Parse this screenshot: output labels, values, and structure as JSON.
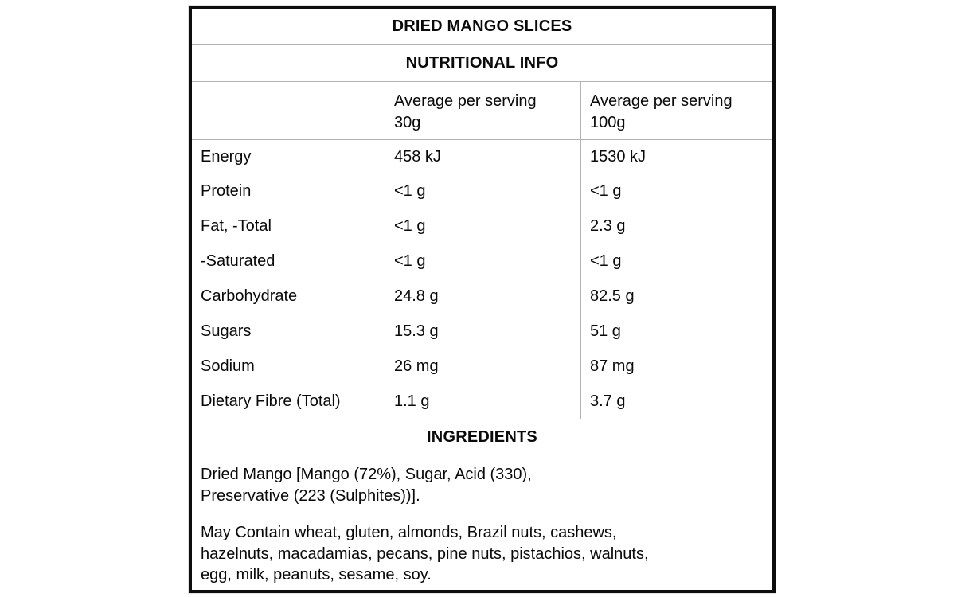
{
  "product": {
    "title": "DRIED MANGO SLICES"
  },
  "nutrition": {
    "section_title": "NUTRITIONAL INFO",
    "column_headers": {
      "serving_30g": "Average per serving\n30g",
      "serving_100g": "Average per serving\n100g"
    },
    "rows": [
      {
        "label": "Energy",
        "per_30g": "458 kJ",
        "per_100g": "1530 kJ"
      },
      {
        "label": "Protein",
        "per_30g": "<1 g",
        "per_100g": "<1 g"
      },
      {
        "label": "Fat, -Total",
        "per_30g": "<1 g",
        "per_100g": "2.3 g"
      },
      {
        "label": "-Saturated",
        "per_30g": "<1 g",
        "per_100g": "<1 g"
      },
      {
        "label": "Carbohydrate",
        "per_30g": "24.8 g",
        "per_100g": "82.5 g"
      },
      {
        "label": "Sugars",
        "per_30g": "15.3 g",
        "per_100g": "51 g"
      },
      {
        "label": "Sodium",
        "per_30g": "26 mg",
        "per_100g": "87 mg"
      },
      {
        "label": "Dietary Fibre (Total)",
        "per_30g": "1.1 g",
        "per_100g": "3.7 g"
      }
    ]
  },
  "ingredients": {
    "section_title": "INGREDIENTS",
    "list_text": "Dried Mango [Mango (72%), Sugar, Acid (330),\nPreservative (223 (Sulphites))].",
    "may_contain_text": "May Contain wheat, gluten, almonds, Brazil nuts, cashews,\nhazelnuts, macadamias, pecans, pine nuts, pistachios, walnuts,\negg, milk, peanuts, sesame, soy."
  },
  "colors": {
    "outer_border": "#0d0d0d",
    "grid_line": "#b3b3b3",
    "text": "#0a0a0a",
    "background": "#ffffff"
  }
}
